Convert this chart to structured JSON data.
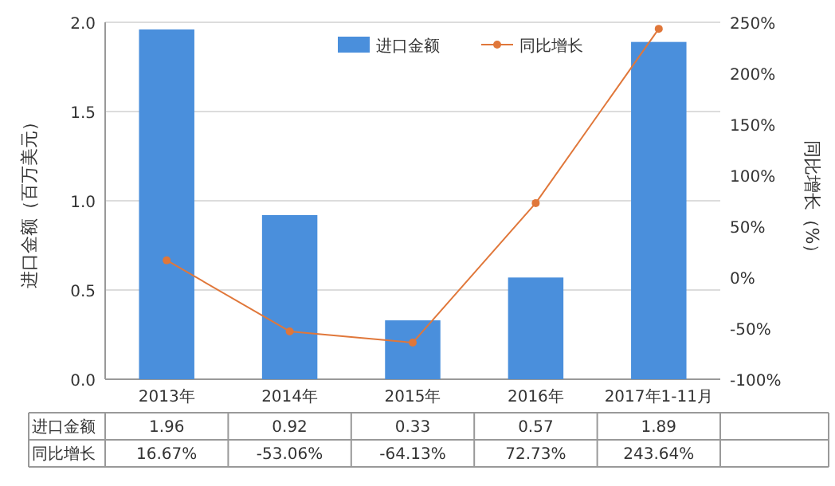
{
  "chart_data": {
    "type": "bar",
    "categories": [
      "2013年",
      "2014年",
      "2015年",
      "2016年",
      "2017年1-11月"
    ],
    "series": [
      {
        "name": "进口金额",
        "color": "#4a8fdc",
        "values": [
          1.96,
          0.92,
          0.33,
          0.57,
          1.89
        ],
        "value_labels": [
          "1.96",
          "0.92",
          "0.33",
          "0.57",
          "1.89"
        ]
      },
      {
        "name": "同比增长",
        "type": "line",
        "axis": "y2",
        "color": "#e0773a",
        "marker": "circle",
        "line_style": "solid",
        "values": [
          16.67,
          -53.06,
          -64.13,
          72.73,
          243.64
        ],
        "value_labels": [
          "16.67%",
          "-53.06%",
          "-64.13%",
          "72.73%",
          "243.64%"
        ]
      }
    ],
    "ylabel": "进口金额（百万美元）",
    "y2label": "同比增长（%）",
    "ylim": [
      0,
      2.0
    ],
    "yticks": [
      {
        "value": 0,
        "label": "0.0"
      },
      {
        "value": 0.5,
        "label": "0.5"
      },
      {
        "value": 1.0,
        "label": "1.0"
      },
      {
        "value": 1.5,
        "label": "1.5"
      },
      {
        "value": 2.0,
        "label": "2.0"
      }
    ],
    "y2lim": [
      -100,
      250
    ],
    "y2ticks": [
      {
        "value": -100,
        "label": "-100%"
      },
      {
        "value": -50,
        "label": "-50%"
      },
      {
        "value": 0,
        "label": "0%"
      },
      {
        "value": 50,
        "label": "50%"
      },
      {
        "value": 100,
        "label": "100%"
      },
      {
        "value": 150,
        "label": "150%"
      },
      {
        "value": 200,
        "label": "200%"
      },
      {
        "value": 250,
        "label": "250%"
      }
    ],
    "grid": "y",
    "legend": "top right"
  }
}
